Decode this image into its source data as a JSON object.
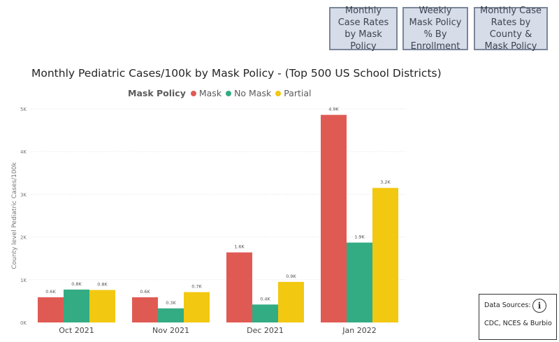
{
  "nav": {
    "btn1": "Monthly Case Rates by Mask Policy",
    "btn2": "Weekly Mask Policy % By Enrollment",
    "btn3": "Monthly Case Rates by County & Mask Policy"
  },
  "legend": {
    "title": "Mask Policy"
  },
  "sources": {
    "heading": "Data Sources:",
    "text": "CDC, NCES & Burbio"
  },
  "colors": {
    "mask": "#e05a54",
    "no_mask": "#33ab83",
    "partial": "#f2c811",
    "grid": "#e1e1e1",
    "axis_text": "#777777"
  },
  "chart_data": {
    "type": "bar",
    "title": "Monthly Pediatric Cases/100k by Mask Policy - (Top 500 US School Districts)",
    "xlabel": "",
    "ylabel": "County level Pediatric Cases/100k",
    "categories": [
      "Oct 2021",
      "Nov 2021",
      "Dec 2021",
      "Jan 2022"
    ],
    "ylim": [
      0,
      5000
    ],
    "yticks": [
      0,
      1000,
      2000,
      3000,
      4000,
      5000
    ],
    "ytick_labels": [
      "0K",
      "1K",
      "2K",
      "3K",
      "4K",
      "5K"
    ],
    "grid": true,
    "legend_position": "top",
    "series": [
      {
        "name": "Mask",
        "color": "#e05a54",
        "values": [
          590,
          590,
          1640,
          4860
        ],
        "labels": [
          "0.6K",
          "0.6K",
          "1.6K",
          "4.9K"
        ]
      },
      {
        "name": "No Mask",
        "color": "#33ab83",
        "values": [
          770,
          330,
          420,
          1870
        ],
        "labels": [
          "0.8K",
          "0.3K",
          "0.4K",
          "1.9K"
        ]
      },
      {
        "name": "Partial",
        "color": "#f2c811",
        "values": [
          760,
          710,
          950,
          3150
        ],
        "labels": [
          "0.8K",
          "0.7K",
          "0.9K",
          "3.2K"
        ]
      }
    ]
  }
}
